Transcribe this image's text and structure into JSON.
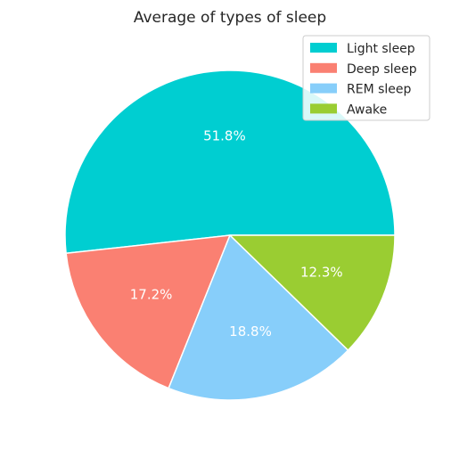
{
  "chart_data": {
    "type": "pie",
    "title": "Average of types of sleep",
    "categories": [
      "Light sleep",
      "Deep sleep",
      "REM sleep",
      "Awake"
    ],
    "values": [
      51.8,
      17.2,
      18.8,
      12.3
    ],
    "value_labels": [
      "51.8%",
      "17.2%",
      "18.8%",
      "12.3%"
    ],
    "colors": [
      "#00CED1",
      "#FA8072",
      "#87CEFA",
      "#9ACD32"
    ],
    "start_angle_deg": 0,
    "direction": "counterclockwise",
    "legend": {
      "placement": "top-right",
      "entries": [
        "Light sleep",
        "Deep sleep",
        "REM sleep",
        "Awake"
      ]
    }
  }
}
